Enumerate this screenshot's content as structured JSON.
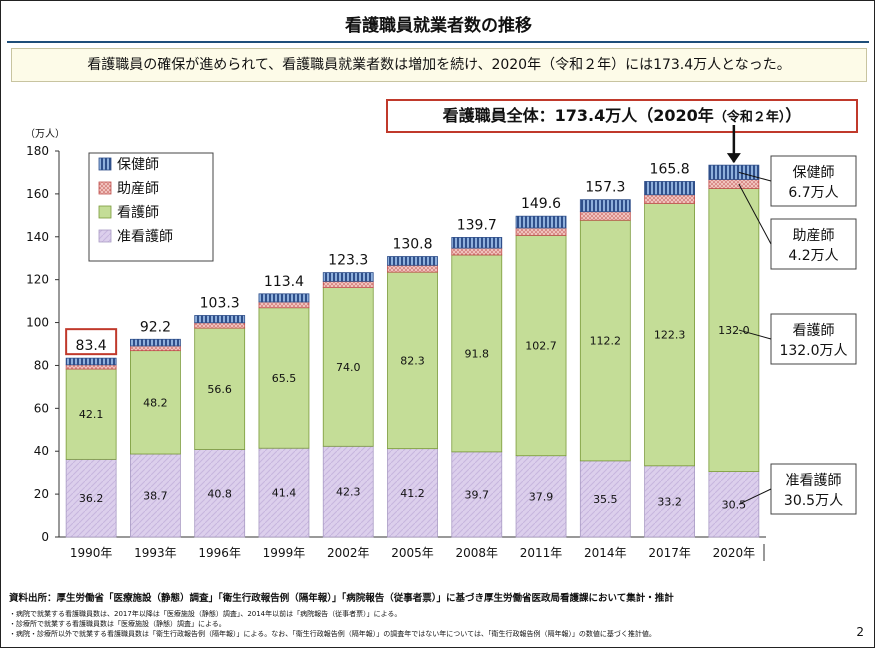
{
  "title": "看護職員就業者数の推移",
  "subtitle": "看護職員の確保が進められて、看護職員就業者数は増加を続け、2020年（令和２年）には173.4万人となった。",
  "callout": {
    "main": "看護職員全体：173.4万人（2020年",
    "small": "（令和２年）",
    "end": "）"
  },
  "chart_data": {
    "type": "bar",
    "stacked": true,
    "unit_label": "（万人）",
    "categories": [
      "1990年",
      "1993年",
      "1996年",
      "1999年",
      "2002年",
      "2005年",
      "2008年",
      "2011年",
      "2014年",
      "2017年",
      "2020年"
    ],
    "series": [
      {
        "name": "准看護師",
        "values": [
          36.2,
          38.7,
          40.8,
          41.4,
          42.3,
          41.2,
          39.7,
          37.9,
          35.5,
          33.2,
          30.5
        ],
        "color": "#d9cdea"
      },
      {
        "name": "看護師",
        "values": [
          42.1,
          48.2,
          56.6,
          65.5,
          74.0,
          82.3,
          91.8,
          102.7,
          112.2,
          122.3,
          132.0
        ],
        "color": "#c4dd97"
      },
      {
        "name": "助産師",
        "values": [
          2.0,
          2.2,
          2.5,
          2.7,
          2.9,
          3.2,
          3.2,
          3.5,
          4.0,
          4.1,
          4.2
        ],
        "color": "#e6a9a4"
      },
      {
        "name": "保健師",
        "values": [
          3.1,
          3.1,
          3.4,
          3.8,
          4.1,
          4.1,
          5.0,
          5.5,
          5.6,
          6.2,
          6.7
        ],
        "color": "#6f95c8"
      }
    ],
    "inner_labels": {
      "准看護師": [
        "36.2",
        "38.7",
        "40.8",
        "41.4",
        "42.3",
        "41.2",
        "39.7",
        "37.9",
        "35.5",
        "33.2",
        "30.5"
      ],
      "看護師": [
        "42.1",
        "48.2",
        "56.6",
        "65.5",
        "74.0",
        "82.3",
        "91.8",
        "102.7",
        "112.2",
        "122.3",
        "132.0"
      ]
    },
    "totals": [
      "83.4",
      "92.2",
      "103.3",
      "113.4",
      "123.3",
      "130.8",
      "139.7",
      "149.6",
      "157.3",
      "165.8",
      ""
    ],
    "highlighted_total_index": 0,
    "legend_order": [
      "保健師",
      "助産師",
      "看護師",
      "准看護師"
    ],
    "legend_position": "top-left",
    "yticks": [
      "0",
      "20",
      "40",
      "60",
      "80",
      "100",
      "120",
      "140",
      "160",
      "180"
    ],
    "ylim": [
      0,
      180
    ],
    "grid": false,
    "right_labels": [
      {
        "name": "保健師",
        "value": "6.7万人"
      },
      {
        "name": "助産師",
        "value": "4.2万人"
      },
      {
        "name": "看護師",
        "value": "132.0万人"
      },
      {
        "name": "准看護師",
        "value": "30.5万人"
      }
    ]
  },
  "footer": {
    "main": "資料出所：厚生労働省「医療施設（静態）調査」「衛生行政報告例（隔年報）」「病院報告（従事者票）」に基づき厚生労働省医政局看護課において集計・推計",
    "notes": [
      "・病院で就業する看護職員数は、2017年以降は「医療施設（静態）調査」、2014年以前は「病院報告（従事者票）」による。",
      "・診療所で就業する看護職員数は「医療施設（静態）調査」による。",
      "・病院・診療所以外で就業する看護職員数は「衛生行政報告例（隔年報）」による。なお、「衛生行政報告例（隔年報）」の調査年ではない年については、「衛生行政報告例（隔年報）」の数値に基づく推計値。"
    ],
    "page_number": "2"
  }
}
